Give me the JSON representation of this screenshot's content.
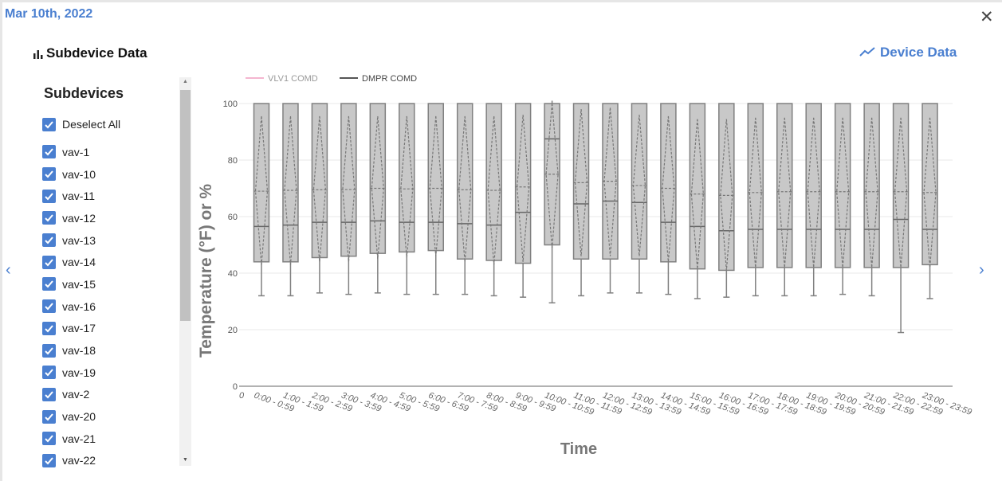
{
  "header": {
    "date": "Mar 10th, 2022",
    "close_icon": "close-icon"
  },
  "section": {
    "title": "Subdevice Data",
    "icon": "bar-chart-icon"
  },
  "device_link": {
    "label": "Device Data",
    "icon": "line-chart-icon"
  },
  "subdevices": {
    "heading": "Subdevices",
    "deselect_label": "Deselect All",
    "items": [
      "vav-1",
      "vav-10",
      "vav-11",
      "vav-12",
      "vav-13",
      "vav-14",
      "vav-15",
      "vav-16",
      "vav-17",
      "vav-18",
      "vav-19",
      "vav-2",
      "vav-20",
      "vav-21",
      "vav-22"
    ]
  },
  "colors": {
    "accent": "#4a7fd0",
    "vlv1": "#f4b6cf",
    "dmpr": "#555555",
    "box_fill": "#c8c8c8",
    "box_stroke": "#808080"
  },
  "chart_data": {
    "type": "box",
    "xlabel": "Time",
    "ylabel": "Temperature (°F) or %",
    "ylim": [
      0,
      100
    ],
    "yticks": [
      0,
      20,
      40,
      60,
      80,
      100
    ],
    "legend": [
      "VLV1 COMD",
      "DMPR COMD"
    ],
    "legend_position": "top-left",
    "x_origin_label": "0",
    "categories": [
      "0:00 - 0:59",
      "1:00 - 1:59",
      "2:00 - 2:59",
      "3:00 - 3:59",
      "4:00 - 4:59",
      "5:00 - 5:59",
      "6:00 - 6:59",
      "7:00 - 7:59",
      "8:00 - 8:59",
      "9:00 - 9:59",
      "10:00 - 10:59",
      "11:00 - 11:59",
      "12:00 - 12:59",
      "13:00 - 13:59",
      "14:00 - 14:59",
      "15:00 - 15:59",
      "16:00 - 16:59",
      "17:00 - 17:59",
      "18:00 - 18:59",
      "19:00 - 19:59",
      "20:00 - 20:59",
      "21:00 - 21:59",
      "22:00 - 22:59",
      "23:00 - 23:59"
    ],
    "series": [
      {
        "name": "DMPR COMD",
        "boxes": [
          {
            "min": 32,
            "q1": 44,
            "median": 56.5,
            "q3": 100,
            "max": 100,
            "mean": 69,
            "sd_high": 95.5,
            "sd_low": 43
          },
          {
            "min": 32,
            "q1": 44,
            "median": 57,
            "q3": 100,
            "max": 100,
            "mean": 69.3,
            "sd_high": 95.5,
            "sd_low": 43
          },
          {
            "min": 33,
            "q1": 45.5,
            "median": 58,
            "q3": 100,
            "max": 100,
            "mean": 69.5,
            "sd_high": 95.5,
            "sd_low": 44
          },
          {
            "min": 32.5,
            "q1": 46,
            "median": 58,
            "q3": 100,
            "max": 100,
            "mean": 69.6,
            "sd_high": 95.5,
            "sd_low": 44
          },
          {
            "min": 33,
            "q1": 47,
            "median": 58.5,
            "q3": 100,
            "max": 100,
            "mean": 70,
            "sd_high": 95.5,
            "sd_low": 45
          },
          {
            "min": 32.5,
            "q1": 47.5,
            "median": 58,
            "q3": 100,
            "max": 100,
            "mean": 69.8,
            "sd_high": 95.5,
            "sd_low": 45.5
          },
          {
            "min": 32.5,
            "q1": 48,
            "median": 58,
            "q3": 100,
            "max": 100,
            "mean": 70,
            "sd_high": 95.5,
            "sd_low": 46
          },
          {
            "min": 32.5,
            "q1": 45,
            "median": 57.5,
            "q3": 100,
            "max": 100,
            "mean": 69.5,
            "sd_high": 95.5,
            "sd_low": 44
          },
          {
            "min": 32,
            "q1": 44.5,
            "median": 57,
            "q3": 100,
            "max": 100,
            "mean": 69.3,
            "sd_high": 95.5,
            "sd_low": 43
          },
          {
            "min": 31.5,
            "q1": 43.5,
            "median": 61.5,
            "q3": 100,
            "max": 100,
            "mean": 70.5,
            "sd_high": 96,
            "sd_low": 44
          },
          {
            "min": 29.5,
            "q1": 50,
            "median": 87.5,
            "q3": 100,
            "max": 101,
            "mean": 75,
            "sd_high": 100,
            "sd_low": 49
          },
          {
            "min": 32,
            "q1": 45,
            "median": 64.5,
            "q3": 100,
            "max": 100,
            "mean": 72,
            "sd_high": 98,
            "sd_low": 46
          },
          {
            "min": 33,
            "q1": 45,
            "median": 65.5,
            "q3": 100,
            "max": 100,
            "mean": 72.5,
            "sd_high": 98.5,
            "sd_low": 46
          },
          {
            "min": 33,
            "q1": 45,
            "median": 65,
            "q3": 100,
            "max": 100,
            "mean": 71,
            "sd_high": 96,
            "sd_low": 46
          },
          {
            "min": 32.5,
            "q1": 44,
            "median": 58,
            "q3": 100,
            "max": 100,
            "mean": 70,
            "sd_high": 95.5,
            "sd_low": 44
          },
          {
            "min": 31,
            "q1": 41.5,
            "median": 56.5,
            "q3": 100,
            "max": 100,
            "mean": 68,
            "sd_high": 94.5,
            "sd_low": 41.5
          },
          {
            "min": 31.5,
            "q1": 41,
            "median": 55,
            "q3": 100,
            "max": 100,
            "mean": 67.5,
            "sd_high": 94.5,
            "sd_low": 41
          },
          {
            "min": 32,
            "q1": 42,
            "median": 55.5,
            "q3": 100,
            "max": 100,
            "mean": 68.5,
            "sd_high": 95,
            "sd_low": 42
          },
          {
            "min": 32,
            "q1": 42,
            "median": 55.5,
            "q3": 100,
            "max": 100,
            "mean": 68.8,
            "sd_high": 95,
            "sd_low": 42
          },
          {
            "min": 32,
            "q1": 42,
            "median": 55.5,
            "q3": 100,
            "max": 100,
            "mean": 68.8,
            "sd_high": 95,
            "sd_low": 42
          },
          {
            "min": 32.5,
            "q1": 42,
            "median": 55.5,
            "q3": 100,
            "max": 100,
            "mean": 68.8,
            "sd_high": 95,
            "sd_low": 42
          },
          {
            "min": 32,
            "q1": 42,
            "median": 55.5,
            "q3": 100,
            "max": 100,
            "mean": 68.8,
            "sd_high": 95,
            "sd_low": 42
          },
          {
            "min": 19,
            "q1": 42,
            "median": 59,
            "q3": 100,
            "max": 100,
            "mean": 68.8,
            "sd_high": 95,
            "sd_low": 42
          },
          {
            "min": 31,
            "q1": 43,
            "median": 55.5,
            "q3": 100,
            "max": 100,
            "mean": 68.5,
            "sd_high": 95,
            "sd_low": 42
          }
        ]
      }
    ]
  }
}
